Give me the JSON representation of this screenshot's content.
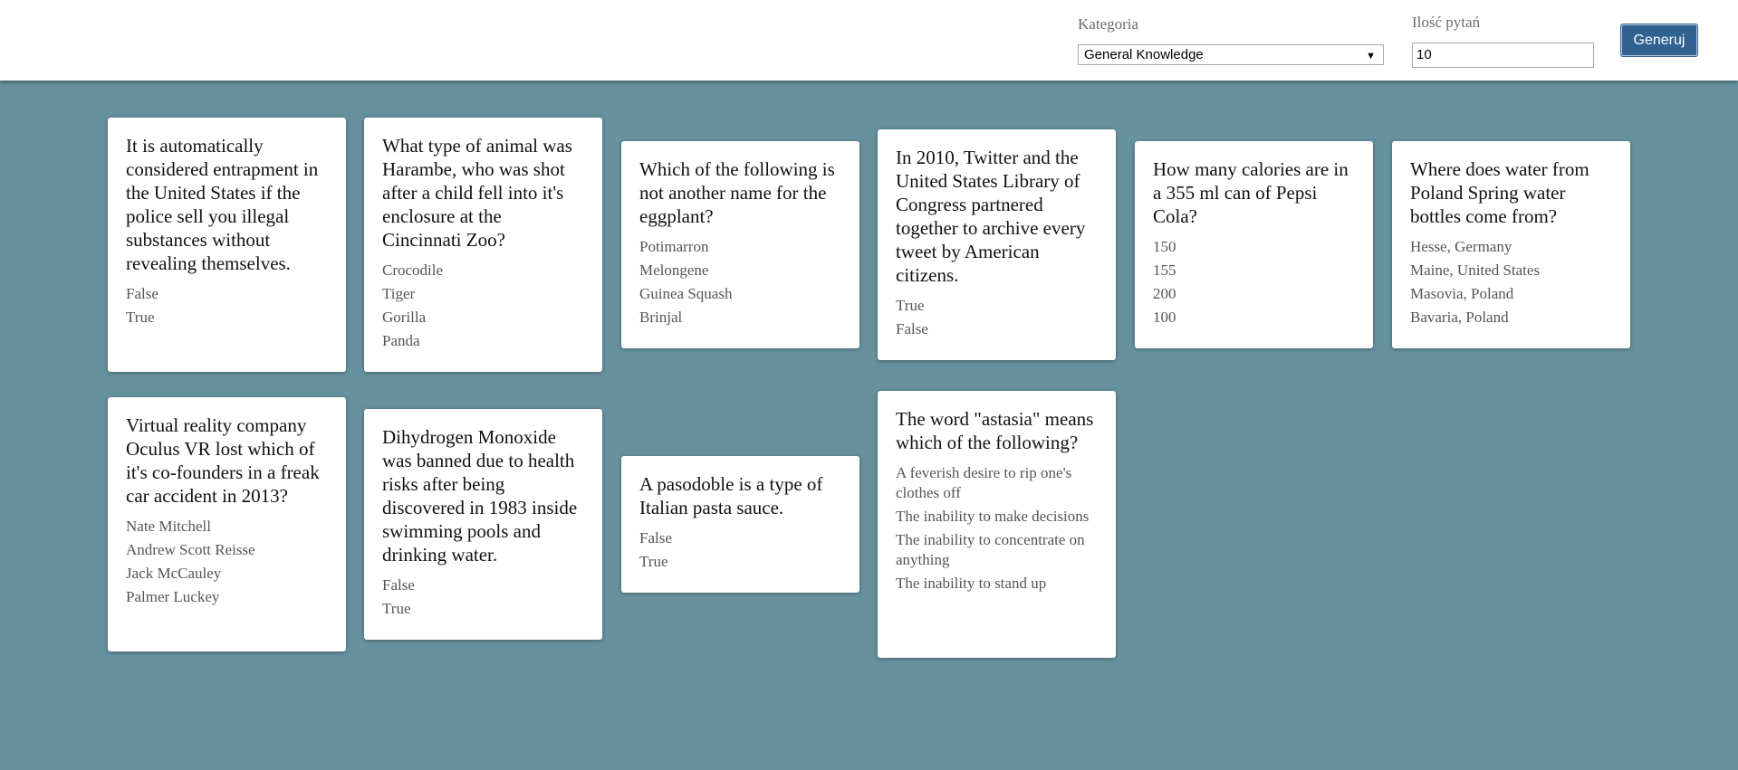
{
  "header": {
    "category_label": "Kategoria",
    "category_value": "General Knowledge",
    "count_label": "Ilość pytań",
    "count_value": "10",
    "generate_label": "Generuj"
  },
  "cards": [
    {
      "question": "It is automatically considered entrapment in the United States if the police sell you illegal substances without revealing themselves.",
      "answers": [
        "False",
        "True"
      ]
    },
    {
      "question": "What type of animal was Harambe, who was shot after a child fell into it's enclosure at the Cincinnati Zoo?",
      "answers": [
        "Crocodile",
        "Tiger",
        "Gorilla",
        "Panda"
      ]
    },
    {
      "question": "Which of the following is not another name for the eggplant?",
      "answers": [
        "Potimarron",
        "Melongene",
        "Guinea Squash",
        "Brinjal"
      ]
    },
    {
      "question": "In 2010, Twitter and the United States Library of Congress partnered together to archive every tweet by American citizens.",
      "answers": [
        "True",
        "False"
      ]
    },
    {
      "question": "How many calories are in a 355 ml can of Pepsi Cola?",
      "answers": [
        "150",
        "155",
        "200",
        "100"
      ]
    },
    {
      "question": "Where does water from Poland Spring water bottles come from?",
      "answers": [
        "Hesse, Germany",
        "Maine, United States",
        "Masovia, Poland",
        "Bavaria, Poland"
      ]
    },
    {
      "question": "Virtual reality company Oculus VR lost which of it's co-founders in a freak car accident in 2013?",
      "answers": [
        "Nate Mitchell",
        "Andrew Scott Reisse",
        "Jack McCauley",
        "Palmer Luckey"
      ]
    },
    {
      "question": "Dihydrogen Monoxide was banned due to health risks after being discovered in 1983 inside swimming pools and drinking water.",
      "answers": [
        "False",
        "True"
      ]
    },
    {
      "question": "A pasodoble is a type of Italian pasta sauce.",
      "answers": [
        "False",
        "True"
      ]
    },
    {
      "question": "The word \"astasia\" means which of the following?",
      "answers": [
        "A feverish desire to rip one's clothes off",
        "The inability to make decisions",
        "The inability to concentrate on anything",
        "The inability to stand up"
      ]
    }
  ]
}
